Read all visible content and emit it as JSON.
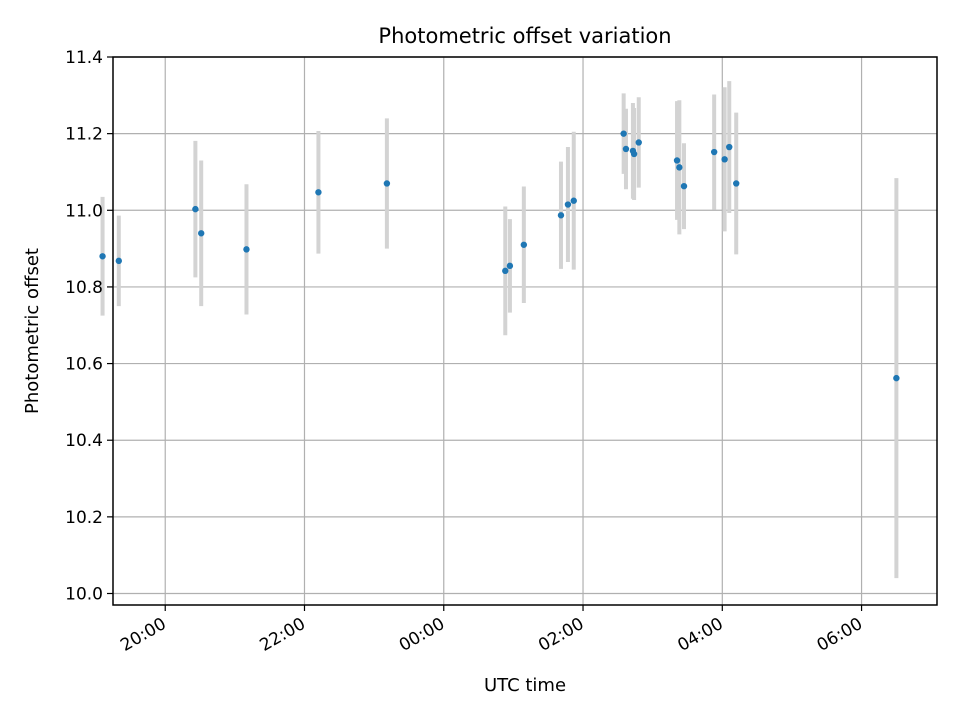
{
  "chart_data": {
    "type": "scatter",
    "title": "Photometric offset variation",
    "xlabel": "UTC time",
    "ylabel": "Photometric offset",
    "xlim": [
      "19:15",
      "07:05"
    ],
    "ylim": [
      9.97,
      11.4
    ],
    "x_ticks": [
      "20:00",
      "22:00",
      "00:00",
      "02:00",
      "04:00",
      "06:00"
    ],
    "y_ticks": [
      "10.0",
      "10.2",
      "10.4",
      "10.6",
      "10.8",
      "11.0",
      "11.2",
      "11.4"
    ],
    "grid": true,
    "marker_color": "#1f77b4",
    "errorbar_color": "#d3d3d3",
    "points": [
      {
        "x": "19:06",
        "y": 10.88,
        "yerr": 0.155
      },
      {
        "x": "19:20",
        "y": 10.868,
        "yerr": 0.118
      },
      {
        "x": "20:26",
        "y": 11.003,
        "yerr": 0.178
      },
      {
        "x": "20:31",
        "y": 10.94,
        "yerr": 0.19
      },
      {
        "x": "21:10",
        "y": 10.898,
        "yerr": 0.17
      },
      {
        "x": "22:12",
        "y": 11.047,
        "yerr": 0.16
      },
      {
        "x": "23:11",
        "y": 11.07,
        "yerr": 0.17
      },
      {
        "x": "00:53",
        "y": 10.842,
        "yerr": 0.168
      },
      {
        "x": "00:57",
        "y": 10.855,
        "yerr": 0.122
      },
      {
        "x": "01:09",
        "y": 10.91,
        "yerr": 0.152
      },
      {
        "x": "01:41",
        "y": 10.987,
        "yerr": 0.14
      },
      {
        "x": "01:47",
        "y": 11.015,
        "yerr": 0.15
      },
      {
        "x": "01:52",
        "y": 11.025,
        "yerr": 0.18
      },
      {
        "x": "02:35",
        "y": 11.2,
        "yerr": 0.105
      },
      {
        "x": "02:37",
        "y": 11.16,
        "yerr": 0.105
      },
      {
        "x": "02:43",
        "y": 11.155,
        "yerr": 0.125
      },
      {
        "x": "02:44",
        "y": 11.147,
        "yerr": 0.12
      },
      {
        "x": "02:48",
        "y": 11.177,
        "yerr": 0.118
      },
      {
        "x": "03:21",
        "y": 11.13,
        "yerr": 0.155
      },
      {
        "x": "03:23",
        "y": 11.112,
        "yerr": 0.175
      },
      {
        "x": "03:27",
        "y": 11.063,
        "yerr": 0.112
      },
      {
        "x": "03:53",
        "y": 11.152,
        "yerr": 0.15
      },
      {
        "x": "04:02",
        "y": 11.133,
        "yerr": 0.188
      },
      {
        "x": "04:06",
        "y": 11.165,
        "yerr": 0.172
      },
      {
        "x": "04:12",
        "y": 11.07,
        "yerr": 0.185
      },
      {
        "x": "06:30",
        "y": 10.562,
        "yerr": 0.522
      }
    ]
  }
}
